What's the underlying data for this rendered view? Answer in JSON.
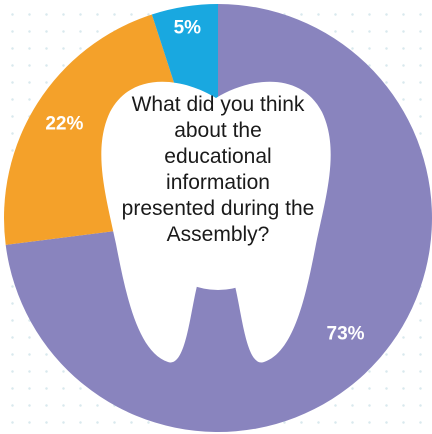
{
  "chart_data": {
    "type": "pie",
    "style": "donut",
    "title": "What did you think about the educational information presented during the Assembly?",
    "slices": [
      {
        "label": "73%",
        "value": 73,
        "color": "#8984be"
      },
      {
        "label": "22%",
        "value": 22,
        "color": "#f4a12a"
      },
      {
        "label": "5%",
        "value": 5,
        "color": "#19a8e0"
      }
    ],
    "center_icon": "tooth-icon",
    "legend": "none"
  }
}
